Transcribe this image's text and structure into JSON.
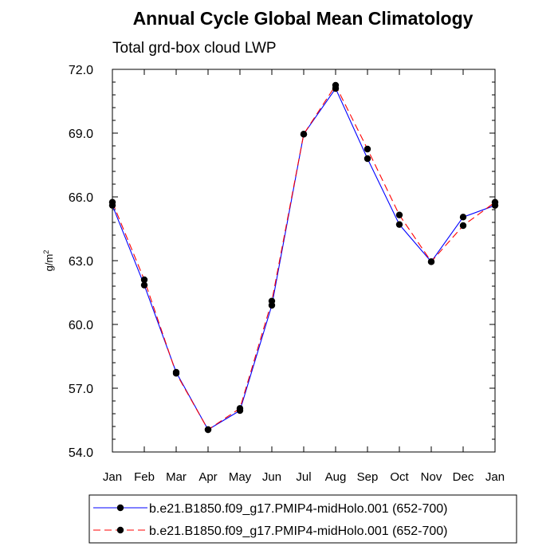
{
  "chart_data": {
    "type": "line",
    "title": "Annual Cycle Global Mean Climatology",
    "subtitle": "Total grd-box cloud LWP",
    "xlabel": "",
    "ylabel_base": "g/m",
    "ylabel_exp": "2",
    "categories": [
      "Jan",
      "Feb",
      "Mar",
      "Apr",
      "May",
      "Jun",
      "Jul",
      "Aug",
      "Sep",
      "Oct",
      "Nov",
      "Dec",
      "Jan"
    ],
    "ylim": [
      54.0,
      72.0
    ],
    "yticks": [
      "54.0",
      "57.0",
      "60.0",
      "63.0",
      "66.0",
      "69.0",
      "72.0"
    ],
    "series": [
      {
        "name": "b.e21.B1850.f09_g17.PMIP4-midHolo.001 (652-700)",
        "color": "#0000ff",
        "dash": "solid",
        "values": [
          65.6,
          61.85,
          57.75,
          55.05,
          55.95,
          60.9,
          68.95,
          71.1,
          67.8,
          64.7,
          62.95,
          65.05,
          65.6
        ]
      },
      {
        "name": "b.e21.B1850.f09_g17.PMIP4-midHolo.001 (652-700)",
        "color": "#ff0000",
        "dash": "dashed",
        "values": [
          65.75,
          62.1,
          57.7,
          55.05,
          56.05,
          61.1,
          68.95,
          71.25,
          68.25,
          65.15,
          62.95,
          64.65,
          65.75
        ]
      }
    ]
  }
}
